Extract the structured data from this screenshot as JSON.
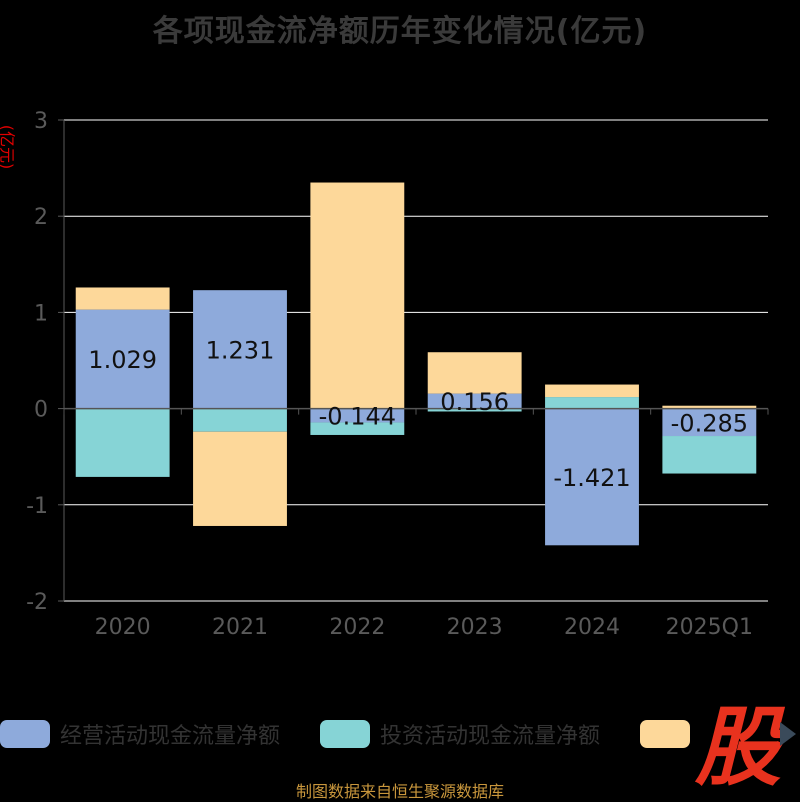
{
  "title": "各项现金流净额历年变化情况(亿元)",
  "y_unit": "(亿元)",
  "source": "制图数据来自恒生聚源数据库",
  "logo_text": "股",
  "colors": {
    "operating": "#8eaadb",
    "investing": "#86d4d6",
    "financing": "#fdd89a",
    "grid": "#ffffff",
    "axis_text": "#5a5a5a",
    "label_text": "#111111"
  },
  "chart_data": {
    "type": "bar",
    "stacked": true,
    "categories": [
      "2020",
      "2021",
      "2022",
      "2023",
      "2024",
      "2025Q1"
    ],
    "ylim": [
      -2,
      3
    ],
    "yticks": [
      -2,
      -1,
      0,
      1,
      2,
      3
    ],
    "series": [
      {
        "name": "经营活动现金流量净额",
        "color_key": "operating",
        "values": [
          1.029,
          1.231,
          -0.144,
          0.156,
          -1.421,
          -0.285
        ],
        "labels": [
          "1.029",
          "1.231",
          "-0.144",
          "0.156",
          "-1.421",
          "-0.285"
        ]
      },
      {
        "name": "投资活动现金流量净额",
        "color_key": "investing",
        "values": [
          -0.71,
          -0.24,
          -0.13,
          -0.03,
          0.12,
          -0.39
        ]
      },
      {
        "name": "",
        "color_key": "financing",
        "values": [
          0.23,
          -0.98,
          2.35,
          0.43,
          0.13,
          0.03
        ]
      }
    ],
    "legend_position": "bottom",
    "grid": true
  }
}
